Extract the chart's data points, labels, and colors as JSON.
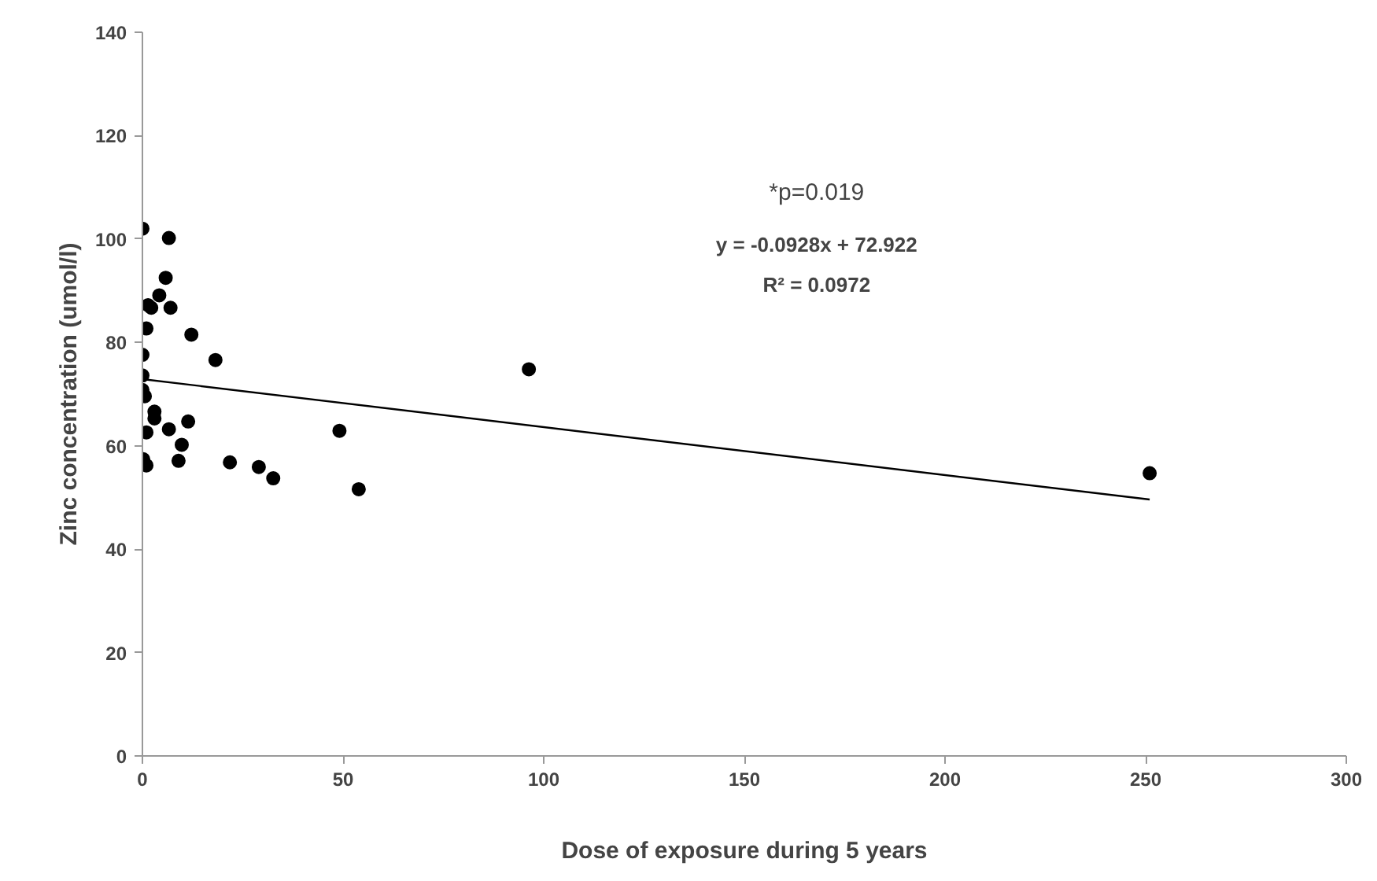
{
  "chart_data": {
    "type": "scatter",
    "xlabel": "Dose of exposure during 5 years",
    "ylabel": "Zinc concentration (umol/l)",
    "x": [
      0,
      6.6,
      5.8,
      4.2,
      1.4,
      2.2,
      7.0,
      1.0,
      12.2,
      0,
      18.2,
      0,
      0,
      0.6,
      3.0,
      3.0,
      1.0,
      6.6,
      11.4,
      9.8,
      9.0,
      0.2,
      1.0,
      21.8,
      29.0,
      32.6,
      49.1,
      53.9,
      96.3,
      251
    ],
    "series": [
      {
        "color": "#000000",
        "marker": "circle",
        "values": [
          102.0,
          100.2,
          92.5,
          89.1,
          87.2,
          86.7,
          86.7,
          82.7,
          81.5,
          77.6,
          76.6,
          73.6,
          70.8,
          69.6,
          66.6,
          65.3,
          62.6,
          63.2,
          64.7,
          60.2,
          57.1,
          57.4,
          56.2,
          56.8,
          55.9,
          53.7,
          62.9,
          51.6,
          74.8,
          54.7
        ]
      },
      {
        "type": "line",
        "color": "#000000",
        "x": [
          0,
          251
        ],
        "values": [
          72.9,
          49.6
        ]
      }
    ],
    "xlim": [
      0,
      300
    ],
    "ylim": [
      0,
      140
    ],
    "xticks": [
      0,
      50,
      100,
      150,
      200,
      250,
      300
    ],
    "yticks": [
      0,
      20,
      40,
      60,
      80,
      100,
      120,
      140
    ],
    "grid": false,
    "annotations": [
      "*p=0.019",
      "y = -0.0928x + 72.922",
      "R² = 0.0972"
    ]
  }
}
